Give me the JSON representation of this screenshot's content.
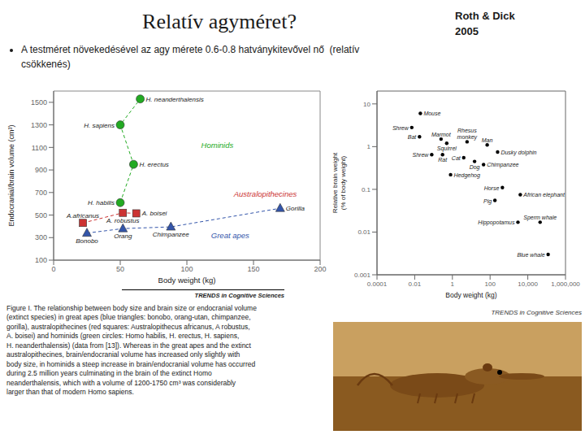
{
  "chart_data": [
    {
      "type": "scatter",
      "title": "Relatív agyméret?",
      "subtitle": "A testméret növekedésével az agy mérete 0.6-0.8 hatványkitevővel nő  (relatív\ncsökkenés)",
      "x_label": "Body weight (kg)",
      "y_label": "Endocranial/brain volume (cm³)",
      "xlim": [
        0,
        200
      ],
      "ylim": [
        100,
        1600
      ],
      "xticks": [
        0,
        50,
        100,
        150,
        200
      ],
      "yticks": [
        100,
        300,
        500,
        700,
        900,
        1100,
        1300,
        1500
      ],
      "series": [
        {
          "name": "Hominids",
          "color": "#22aa22",
          "marker": "circle",
          "line_style": "dashed",
          "x": [
            50,
            60,
            50,
            65
          ],
          "values": [
            610,
            950,
            1300,
            1530
          ],
          "labels": [
            "H. habilis",
            "H. erectus",
            "H. sapiens",
            "H. neanderthalensis"
          ]
        },
        {
          "name": "Australopithecines",
          "color": "#cc3333",
          "marker": "square",
          "line_style": "dashed",
          "x": [
            22,
            52,
            62
          ],
          "values": [
            430,
            520,
            515
          ],
          "labels": [
            "A.africanus",
            "A. robustus",
            "A. boisei"
          ]
        },
        {
          "name": "Great apes",
          "color": "#3355aa",
          "marker": "triangle",
          "line_style": "dashed",
          "x": [
            25,
            52,
            88,
            170
          ],
          "values": [
            340,
            380,
            395,
            560
          ],
          "labels": [
            "Bonobo",
            "Orang",
            "Chimpanzee",
            "Gorilla"
          ]
        }
      ],
      "annotations": [
        "Roth & Dick",
        "2005",
        "TRENDS in Cognitive Sciences",
        "Figure I. The relationship between body size and brain size or endocranial volume\n(extinct species) in great apes (blue triangles: bonobo, orang-utan, chimpanzee,\ngorilla), australopithecines (red squares: Australopithecus africanus, A robustus,\nA. boisei) and hominids (green circles: Homo habilis, H. erectus, H. sapiens,\nH. neanderthalensis) (data from [13]). Whereas in the great apes and the extinct\naustralopithecines, brain/endocranial volume has increased only slightly with\nbody size, in hominids a steep increase in brain/endocranial volume has occurred\nduring 2.5 million years culminating in the brain of the extinct Homo\nneanderthalensis, which with a volume of 1200-1750 cm³ was considerably\nlarger than that of modern Homo sapiens."
      ]
    },
    {
      "type": "scatter",
      "log": true,
      "x_label": "Body weight (kg)",
      "y_label": "Relative brain weight\n(% of body weight)",
      "xlim": [
        0.0001,
        1000000
      ],
      "ylim": [
        0.001,
        20
      ],
      "xticks": [
        0.0001,
        0.01,
        1,
        100,
        {
          "value": 10000,
          "label": "10,000"
        },
        {
          "value": 1000000,
          "label": "1,000,000"
        }
      ],
      "yticks": [
        0.001,
        0.01,
        0.1,
        1,
        10
      ],
      "color": "#000000",
      "x": [
        0.02,
        0.007,
        0.25,
        0.5,
        6,
        70,
        0.018,
        0.08,
        0.3,
        4,
        0.8,
        15,
        250,
        45,
        450,
        4000,
        180,
        3000,
        45000,
        120000
      ],
      "values": [
        6.0,
        2.8,
        1.5,
        1.2,
        1.3,
        1.1,
        1.7,
        0.65,
        0.65,
        0.55,
        0.22,
        0.45,
        0.75,
        0.38,
        0.11,
        0.075,
        0.055,
        0.017,
        0.017,
        0.003
      ],
      "labels": [
        "Mouse",
        "Shrew",
        "Marmot",
        "Squirrel",
        "Rhesus\nmonkey",
        "Man",
        "Bat",
        "Shrew",
        "Rat",
        "Cat",
        "Hedgehog",
        "Dog",
        "Dusky dolphin",
        "Chimpanzee",
        "Horse",
        "African elephant",
        "Pig",
        "Hippopotamus",
        "Sperm whale",
        "Blue whale"
      ],
      "annotations": [
        "TRENDS in Cognitive Sciences"
      ]
    }
  ]
}
